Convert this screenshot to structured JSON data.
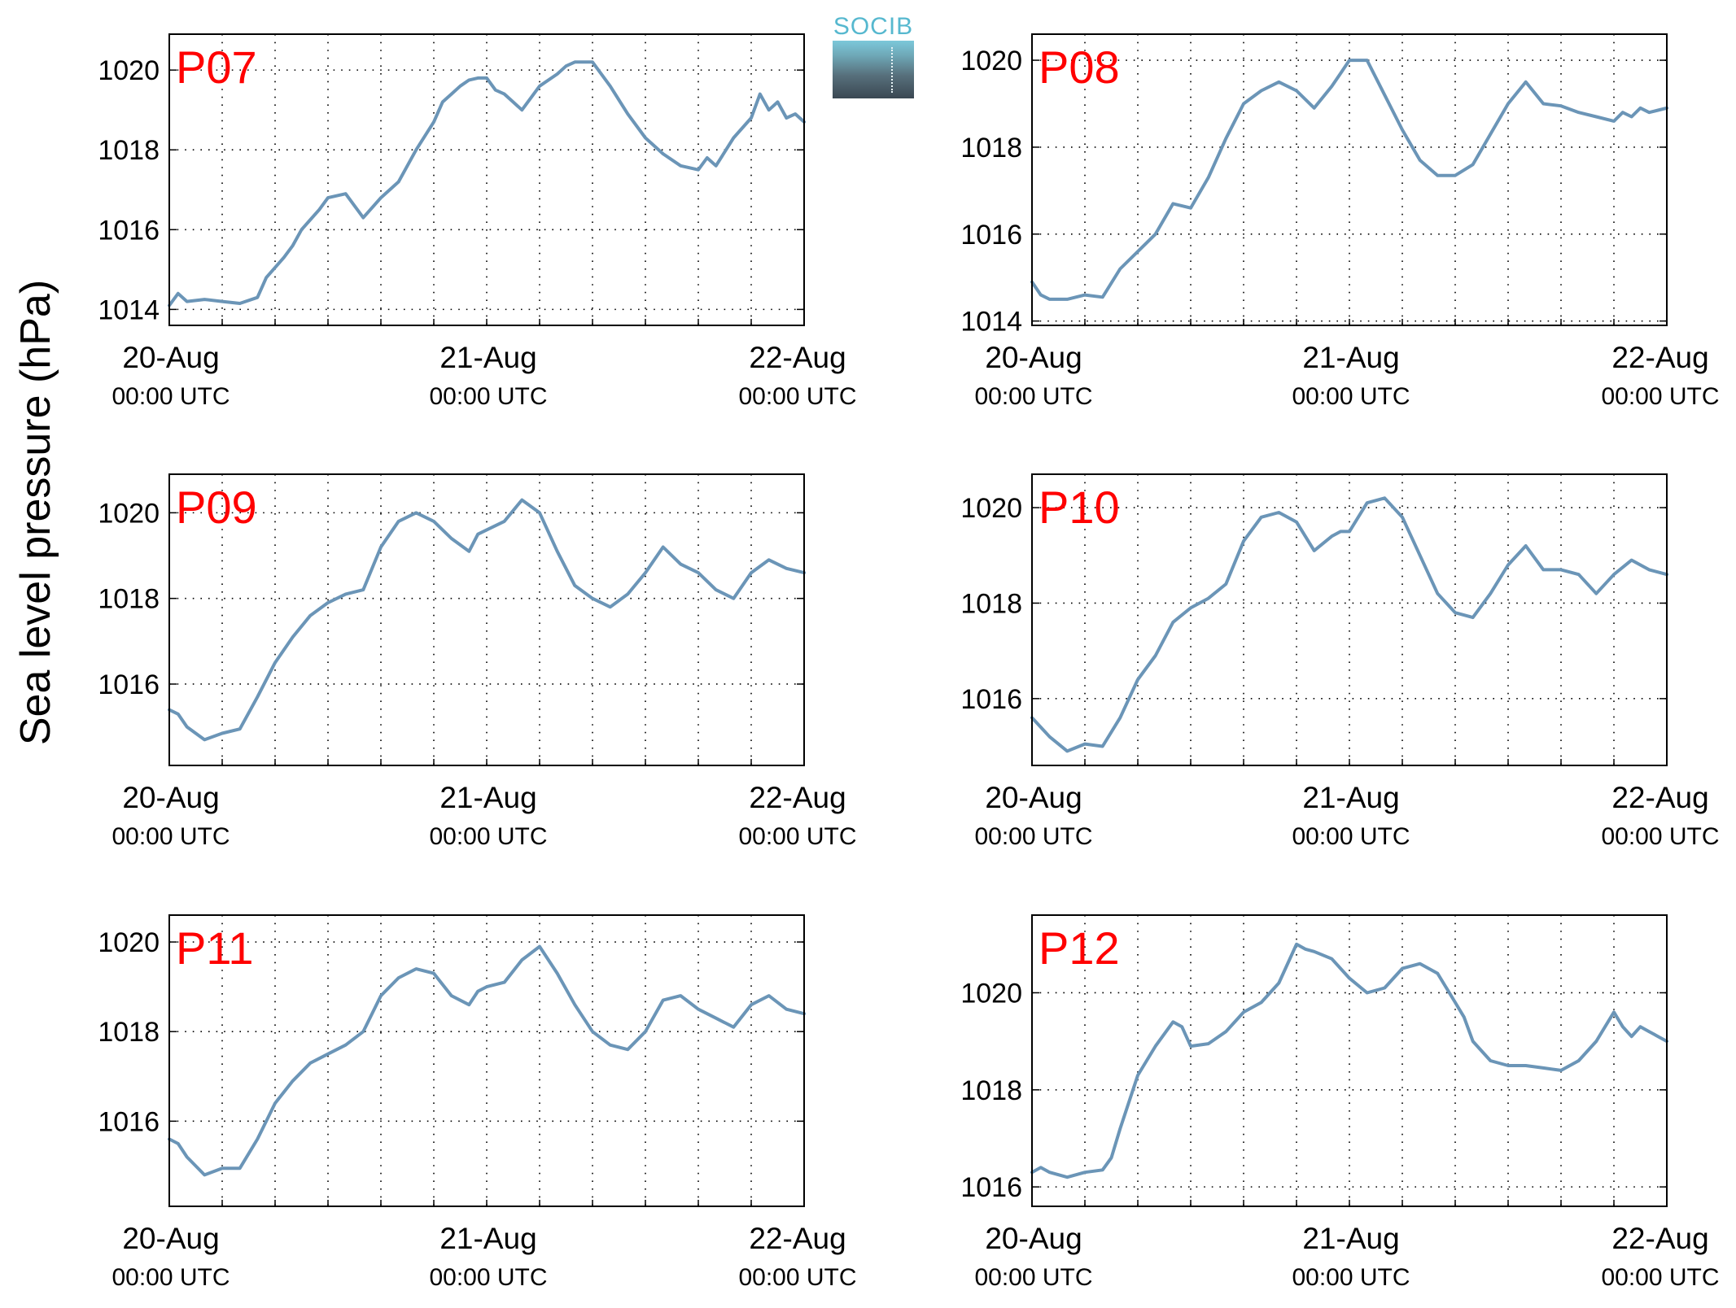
{
  "figure": {
    "ylabel": "Sea level pressure (hPa)",
    "logo_text": "SOCIB",
    "line_color": "#6b95b7",
    "station_label_color": "#ff0000"
  },
  "chart_data": [
    {
      "type": "line",
      "station": "P07",
      "xticks": [
        {
          "main": "20-Aug",
          "sub": "00:00 UTC"
        },
        {
          "main": "21-Aug",
          "sub": "00:00 UTC"
        },
        {
          "main": "22-Aug",
          "sub": "00:00 UTC"
        }
      ],
      "ylim": [
        1013.6,
        1020.9
      ],
      "yticks": [
        1014,
        1016,
        1018,
        1020
      ],
      "grid": true,
      "x_hours": [
        0,
        1,
        2,
        4,
        6,
        8,
        10,
        11,
        13,
        14,
        15,
        17,
        18,
        20,
        22,
        24,
        26,
        28,
        30,
        31,
        32,
        33,
        34,
        35,
        36,
        37,
        38,
        39,
        40,
        42,
        44,
        45,
        46,
        48,
        50,
        52,
        54,
        56,
        58,
        60,
        61,
        62,
        64,
        66,
        67,
        68,
        69,
        70,
        71,
        72
      ],
      "values": [
        1014.1,
        1014.4,
        1014.2,
        1014.25,
        1014.2,
        1014.15,
        1014.3,
        1014.8,
        1015.3,
        1015.6,
        1016.0,
        1016.5,
        1016.8,
        1016.9,
        1016.3,
        1016.8,
        1017.2,
        1018.0,
        1018.7,
        1019.2,
        1019.4,
        1019.6,
        1019.75,
        1019.8,
        1019.8,
        1019.5,
        1019.4,
        1019.2,
        1019.0,
        1019.6,
        1019.9,
        1020.1,
        1020.2,
        1020.2,
        1019.6,
        1018.9,
        1018.3,
        1017.9,
        1017.6,
        1017.5,
        1017.8,
        1017.6,
        1018.3,
        1018.8,
        1019.4,
        1019.0,
        1019.2,
        1018.8,
        1018.9,
        1018.7
      ]
    },
    {
      "type": "line",
      "station": "P08",
      "xticks": [
        {
          "main": "20-Aug",
          "sub": "00:00 UTC"
        },
        {
          "main": "21-Aug",
          "sub": "00:00 UTC"
        },
        {
          "main": "22-Aug",
          "sub": "00:00 UTC"
        }
      ],
      "ylim": [
        1013.9,
        1020.6
      ],
      "yticks": [
        1014,
        1016,
        1018,
        1020
      ],
      "grid": true,
      "x_hours": [
        0,
        1,
        2,
        4,
        6,
        8,
        10,
        12,
        14,
        16,
        18,
        20,
        22,
        24,
        26,
        28,
        30,
        32,
        34,
        35,
        36,
        38,
        40,
        42,
        44,
        46,
        48,
        50,
        52,
        54,
        56,
        58,
        60,
        62,
        64,
        66,
        67,
        68,
        69,
        70,
        71,
        72
      ],
      "values": [
        1014.9,
        1014.6,
        1014.5,
        1014.5,
        1014.6,
        1014.55,
        1015.2,
        1015.6,
        1016.0,
        1016.7,
        1016.6,
        1017.3,
        1018.2,
        1019.0,
        1019.3,
        1019.5,
        1019.3,
        1018.9,
        1019.4,
        1019.7,
        1020.0,
        1020.0,
        1019.2,
        1018.4,
        1017.7,
        1017.35,
        1017.35,
        1017.6,
        1018.3,
        1019.0,
        1019.5,
        1019.0,
        1018.95,
        1018.8,
        1018.7,
        1018.6,
        1018.8,
        1018.7,
        1018.9,
        1018.8,
        1018.85,
        1018.9
      ]
    },
    {
      "type": "line",
      "station": "P09",
      "xticks": [
        {
          "main": "20-Aug",
          "sub": "00:00 UTC"
        },
        {
          "main": "21-Aug",
          "sub": "00:00 UTC"
        },
        {
          "main": "22-Aug",
          "sub": "00:00 UTC"
        }
      ],
      "ylim": [
        1014.1,
        1020.9
      ],
      "yticks": [
        1016,
        1018,
        1020
      ],
      "grid": true,
      "x_hours": [
        0,
        1,
        2,
        4,
        6,
        8,
        10,
        12,
        14,
        16,
        18,
        20,
        22,
        24,
        26,
        28,
        30,
        32,
        34,
        35,
        36,
        38,
        40,
        42,
        44,
        46,
        48,
        50,
        52,
        54,
        56,
        58,
        60,
        62,
        64,
        66,
        68,
        70,
        72
      ],
      "values": [
        1015.4,
        1015.3,
        1015.0,
        1014.7,
        1014.85,
        1014.95,
        1015.7,
        1016.5,
        1017.1,
        1017.6,
        1017.9,
        1018.1,
        1018.2,
        1019.2,
        1019.8,
        1020.0,
        1019.8,
        1019.4,
        1019.1,
        1019.5,
        1019.6,
        1019.8,
        1020.3,
        1020.0,
        1019.1,
        1018.3,
        1018.0,
        1017.8,
        1018.1,
        1018.6,
        1019.2,
        1018.8,
        1018.6,
        1018.2,
        1018.0,
        1018.6,
        1018.9,
        1018.7,
        1018.6
      ]
    },
    {
      "type": "line",
      "station": "P10",
      "xticks": [
        {
          "main": "20-Aug",
          "sub": "00:00 UTC"
        },
        {
          "main": "21-Aug",
          "sub": "00:00 UTC"
        },
        {
          "main": "22-Aug",
          "sub": "00:00 UTC"
        }
      ],
      "ylim": [
        1014.6,
        1020.7
      ],
      "yticks": [
        1016,
        1018,
        1020
      ],
      "grid": true,
      "x_hours": [
        0,
        1,
        2,
        4,
        6,
        8,
        10,
        12,
        14,
        16,
        18,
        20,
        22,
        24,
        26,
        28,
        30,
        32,
        34,
        35,
        36,
        38,
        40,
        42,
        44,
        46,
        48,
        50,
        52,
        54,
        56,
        58,
        60,
        62,
        64,
        66,
        68,
        70,
        72
      ],
      "values": [
        1015.6,
        1015.4,
        1015.2,
        1014.9,
        1015.05,
        1015.0,
        1015.6,
        1016.4,
        1016.9,
        1017.6,
        1017.9,
        1018.1,
        1018.4,
        1019.3,
        1019.8,
        1019.9,
        1019.7,
        1019.1,
        1019.4,
        1019.5,
        1019.5,
        1020.1,
        1020.2,
        1019.8,
        1019.0,
        1018.2,
        1017.8,
        1017.7,
        1018.2,
        1018.8,
        1019.2,
        1018.7,
        1018.7,
        1018.6,
        1018.2,
        1018.6,
        1018.9,
        1018.7,
        1018.6
      ]
    },
    {
      "type": "line",
      "station": "P11",
      "xticks": [
        {
          "main": "20-Aug",
          "sub": "00:00 UTC"
        },
        {
          "main": "21-Aug",
          "sub": "00:00 UTC"
        },
        {
          "main": "22-Aug",
          "sub": "00:00 UTC"
        }
      ],
      "ylim": [
        1014.1,
        1020.6
      ],
      "yticks": [
        1016,
        1018,
        1020
      ],
      "grid": true,
      "x_hours": [
        0,
        1,
        2,
        4,
        6,
        8,
        10,
        12,
        14,
        16,
        18,
        20,
        22,
        24,
        26,
        28,
        30,
        32,
        34,
        35,
        36,
        38,
        40,
        42,
        44,
        46,
        48,
        50,
        52,
        54,
        56,
        58,
        60,
        62,
        64,
        66,
        68,
        70,
        72
      ],
      "values": [
        1015.6,
        1015.5,
        1015.2,
        1014.8,
        1014.95,
        1014.95,
        1015.6,
        1016.4,
        1016.9,
        1017.3,
        1017.5,
        1017.7,
        1018.0,
        1018.8,
        1019.2,
        1019.4,
        1019.3,
        1018.8,
        1018.6,
        1018.9,
        1019.0,
        1019.1,
        1019.6,
        1019.9,
        1019.3,
        1018.6,
        1018.0,
        1017.7,
        1017.6,
        1018.0,
        1018.7,
        1018.8,
        1018.5,
        1018.3,
        1018.1,
        1018.6,
        1018.8,
        1018.5,
        1018.4
      ]
    },
    {
      "type": "line",
      "station": "P12",
      "xticks": [
        {
          "main": "20-Aug",
          "sub": "00:00 UTC"
        },
        {
          "main": "21-Aug",
          "sub": "00:00 UTC"
        },
        {
          "main": "22-Aug",
          "sub": "00:00 UTC"
        }
      ],
      "ylim": [
        1015.6,
        1021.6
      ],
      "yticks": [
        1016,
        1018,
        1020
      ],
      "grid": true,
      "x_hours": [
        0,
        1,
        2,
        4,
        6,
        8,
        9,
        10,
        12,
        14,
        16,
        17,
        18,
        20,
        22,
        24,
        26,
        28,
        30,
        31,
        32,
        34,
        36,
        38,
        40,
        42,
        44,
        46,
        48,
        49,
        50,
        52,
        54,
        56,
        58,
        60,
        62,
        64,
        66,
        67,
        68,
        69,
        70,
        71,
        72
      ],
      "values": [
        1016.3,
        1016.4,
        1016.3,
        1016.2,
        1016.3,
        1016.35,
        1016.6,
        1017.2,
        1018.3,
        1018.9,
        1019.4,
        1019.3,
        1018.9,
        1018.95,
        1019.2,
        1019.6,
        1019.8,
        1020.2,
        1021.0,
        1020.9,
        1020.85,
        1020.7,
        1020.3,
        1020.0,
        1020.1,
        1020.5,
        1020.6,
        1020.4,
        1019.8,
        1019.5,
        1019.0,
        1018.6,
        1018.5,
        1018.5,
        1018.45,
        1018.4,
        1018.6,
        1019.0,
        1019.6,
        1019.3,
        1019.1,
        1019.3,
        1019.2,
        1019.1,
        1019.0
      ]
    }
  ]
}
